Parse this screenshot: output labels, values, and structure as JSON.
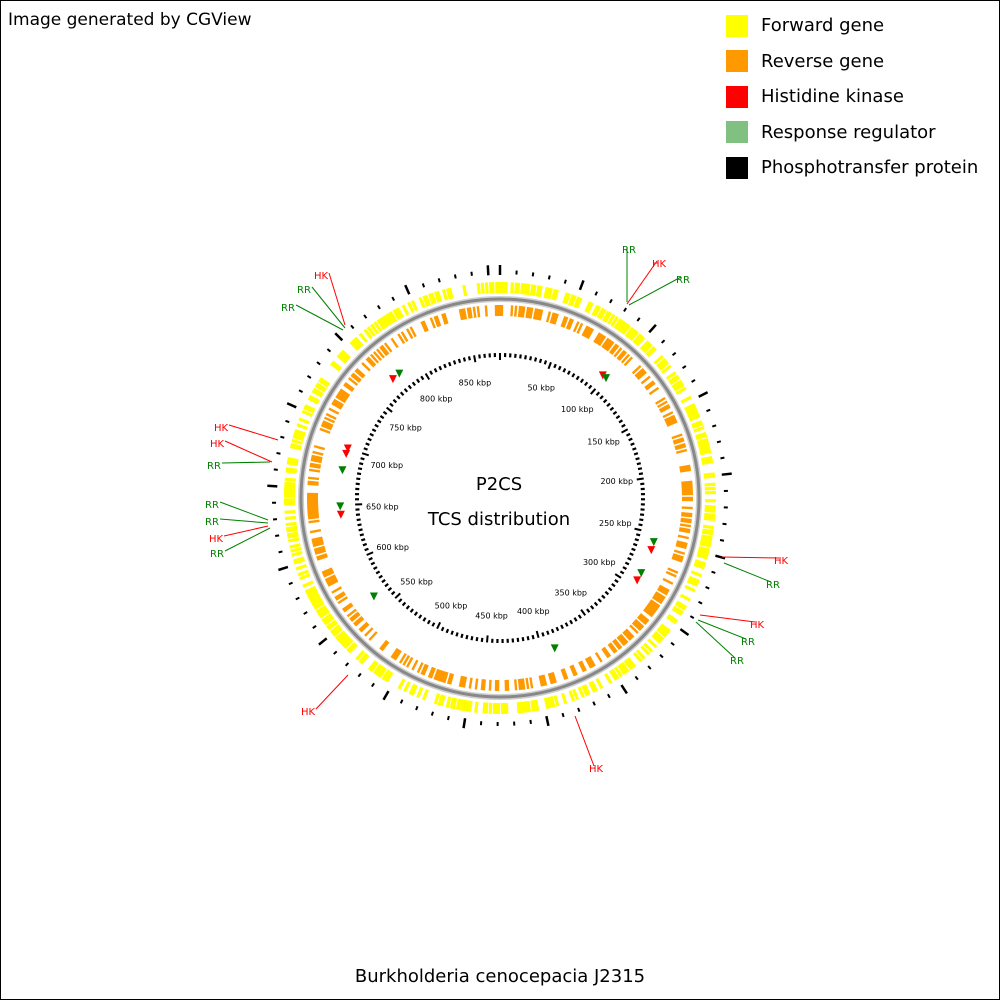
{
  "credit": "Image generated by CGView",
  "legend": [
    {
      "label": "Forward gene",
      "color": "#ffff00"
    },
    {
      "label": "Reverse gene",
      "color": "#ff9900"
    },
    {
      "label": "Histidine kinase",
      "color": "#ff0000"
    },
    {
      "label": "Response regulator",
      "color": "#80c080"
    },
    {
      "label": "Phosphotransfer protein",
      "color": "#000000"
    }
  ],
  "center": {
    "line1": "P2CS",
    "line2": "TCS distribution"
  },
  "organism": "Burkholderia cenocepacia J2315",
  "tick_labels": [
    "50 kbp",
    "100 kbp",
    "150 kbp",
    "200 kbp",
    "250 kbp",
    "300 kbp",
    "350 kbp",
    "400 kbp",
    "450 kbp",
    "500 kbp",
    "550 kbp",
    "600 kbp",
    "650 kbp",
    "700 kbp",
    "750 kbp",
    "800 kbp",
    "850 kbp"
  ],
  "callouts": [
    {
      "text": "RR",
      "type": "RR"
    },
    {
      "text": "HK",
      "type": "HK"
    },
    {
      "text": "RR",
      "type": "RR"
    },
    {
      "text": "HK",
      "type": "HK"
    },
    {
      "text": "RR",
      "type": "RR"
    },
    {
      "text": "RR",
      "type": "RR"
    },
    {
      "text": "HK",
      "type": "HK"
    },
    {
      "text": "HK",
      "type": "HK"
    },
    {
      "text": "RR",
      "type": "RR"
    },
    {
      "text": "RR",
      "type": "RR"
    },
    {
      "text": "RR",
      "type": "RR"
    },
    {
      "text": "HK",
      "type": "HK"
    },
    {
      "text": "RR",
      "type": "RR"
    },
    {
      "text": "HK",
      "type": "HK"
    },
    {
      "text": "RR",
      "type": "RR"
    },
    {
      "text": "HK",
      "type": "HK"
    },
    {
      "text": "RR",
      "type": "RR"
    },
    {
      "text": "RR",
      "type": "RR"
    },
    {
      "text": "HK",
      "type": "HK"
    },
    {
      "text": "HK",
      "type": "HK"
    }
  ],
  "colors": {
    "HK": "#ff0000",
    "RR": "#008000",
    "forward": "#ffff00",
    "reverse": "#ff9900",
    "backbone": "#888888"
  }
}
